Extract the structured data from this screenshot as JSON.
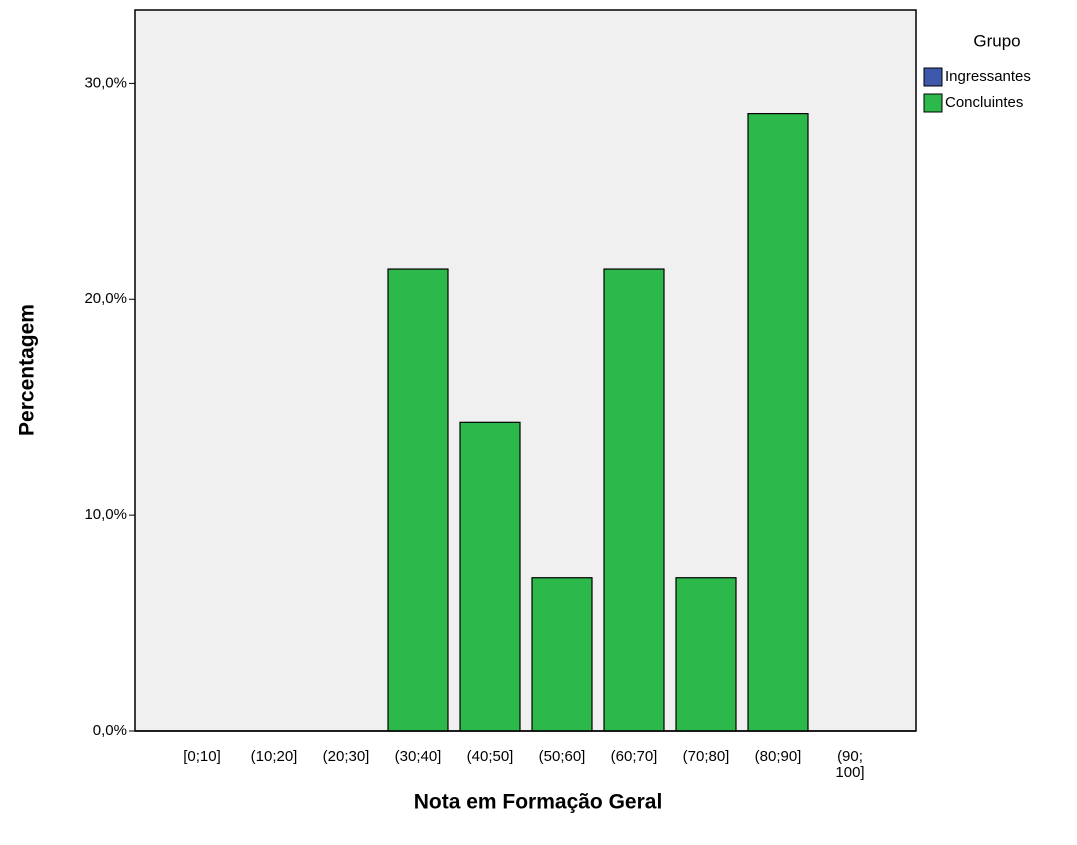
{
  "chart_data": {
    "type": "bar",
    "x_label": "Nota em Formação Geral",
    "y_label": "Percentagem",
    "legend_title": "Grupo",
    "categories": [
      "[0;10]",
      "(10;20]",
      "(20;30]",
      "(30;40]",
      "(40;50]",
      "(50;60]",
      "(60;70]",
      "(70;80]",
      "(80;90]",
      "(90; 100]"
    ],
    "series": [
      {
        "name": "Ingressantes",
        "color": "#3e58ac",
        "values": [
          null,
          null,
          null,
          null,
          null,
          null,
          null,
          null,
          null,
          null
        ]
      },
      {
        "name": "Concluintes",
        "color": "#2db84b",
        "values": [
          0,
          0,
          0,
          21.4,
          14.3,
          7.1,
          21.4,
          7.1,
          28.6,
          0
        ]
      }
    ],
    "ylim": [
      0,
      33.4
    ],
    "yticks": [
      {
        "value": 0,
        "label": "0,0%"
      },
      {
        "value": 10,
        "label": "10,0%"
      },
      {
        "value": 20,
        "label": "20,0%"
      },
      {
        "value": 30,
        "label": "30,0%"
      }
    ],
    "legend_position": "right",
    "grid": false
  }
}
